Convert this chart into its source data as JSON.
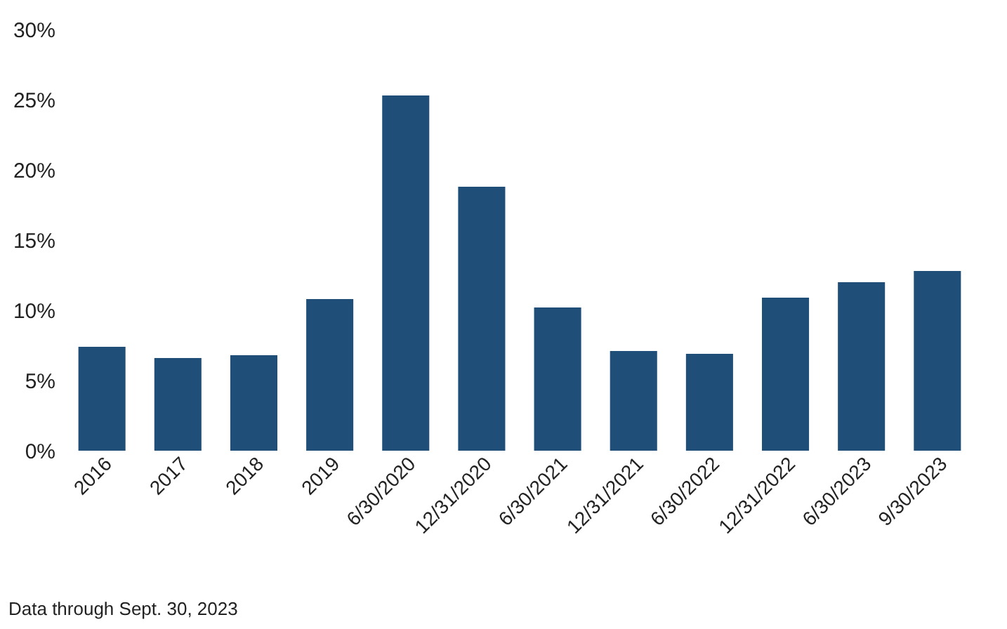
{
  "chart_data": {
    "type": "bar",
    "categories": [
      "2016",
      "2017",
      "2018",
      "2019",
      "6/30/2020",
      "12/31/2020",
      "6/30/2021",
      "12/31/2021",
      "6/30/2022",
      "12/31/2022",
      "6/30/2023",
      "9/30/2023"
    ],
    "values": [
      7.4,
      6.6,
      6.8,
      10.8,
      25.3,
      18.8,
      10.2,
      7.1,
      6.9,
      10.9,
      12.0,
      12.8
    ],
    "color": "#1f4e79",
    "ylim": [
      0,
      30
    ],
    "yticks": [
      {
        "value": 0,
        "label": "0%"
      },
      {
        "value": 5,
        "label": "5%"
      },
      {
        "value": 10,
        "label": "10%"
      },
      {
        "value": 15,
        "label": "15%"
      },
      {
        "value": 20,
        "label": "20%"
      },
      {
        "value": 25,
        "label": "25%"
      },
      {
        "value": 30,
        "label": "30%"
      }
    ],
    "grid": false,
    "annotations": [
      "Data through Sept. 30, 2023"
    ]
  }
}
